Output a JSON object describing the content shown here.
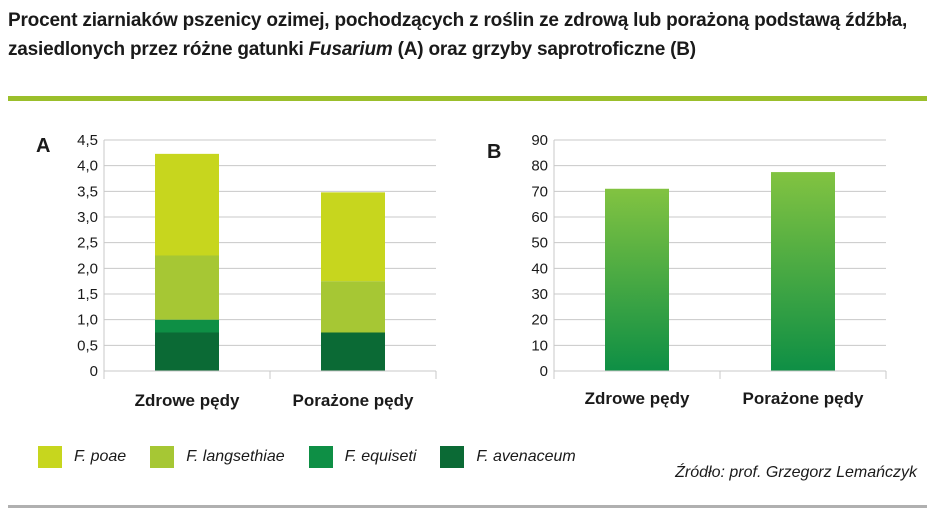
{
  "title_part1": "Procent ziarniaków pszenicy ozimej, pochodzących z roślin ze zdrową lub porażoną podstawą źdźbła, zasiedlonych przez różne gatunki ",
  "title_italic": "Fusarium",
  "title_part2": " (A) oraz grzyby saprotroficzne (B)",
  "source": "Źródło: prof. Grzegorz Lemańczyk",
  "colors": {
    "rule": "#9bbf2b",
    "rule_bottom": "#b0b0b0",
    "grid": "#c8c8c8",
    "F. poae": "#c7d61e",
    "F. langsethiae": "#a6c734",
    "F. equiseti": "#0e8f45",
    "F. avenaceum": "#0b6a35",
    "saprotroph_top": "#82c341",
    "saprotroph_bottom": "#0e8f45"
  },
  "legend": [
    {
      "label": "F. poae",
      "color": "#c7d61e"
    },
    {
      "label": "F. langsethiae",
      "color": "#a6c734"
    },
    {
      "label": "F. equiseti",
      "color": "#0e8f45"
    },
    {
      "label": "F. avenaceum",
      "color": "#0b6a35"
    }
  ],
  "chart_data": [
    {
      "type": "bar",
      "stacked": true,
      "panel_label": "A",
      "categories": [
        "Zdrowe pędy",
        "Porażone pędy"
      ],
      "series": [
        {
          "name": "F. avenaceum",
          "values": [
            0.75,
            0.75
          ]
        },
        {
          "name": "F. equiseti",
          "values": [
            0.25,
            0.0
          ]
        },
        {
          "name": "F. langsethiae",
          "values": [
            1.25,
            1.0
          ]
        },
        {
          "name": "F. poae",
          "values": [
            1.98,
            1.73
          ]
        }
      ],
      "ylim": [
        0,
        4.5
      ],
      "yticks": [
        "0",
        "0,5",
        "1,0",
        "1,5",
        "2,0",
        "2,5",
        "3,0",
        "3,5",
        "4,0",
        "4,5"
      ],
      "grid": true
    },
    {
      "type": "bar",
      "panel_label": "B",
      "categories": [
        "Zdrowe pędy",
        "Porażone pędy"
      ],
      "values": [
        71,
        77.5
      ],
      "ylim": [
        0,
        90
      ],
      "yticks": [
        "0",
        "10",
        "20",
        "30",
        "40",
        "50",
        "60",
        "70",
        "80",
        "90"
      ],
      "grid": true
    }
  ]
}
